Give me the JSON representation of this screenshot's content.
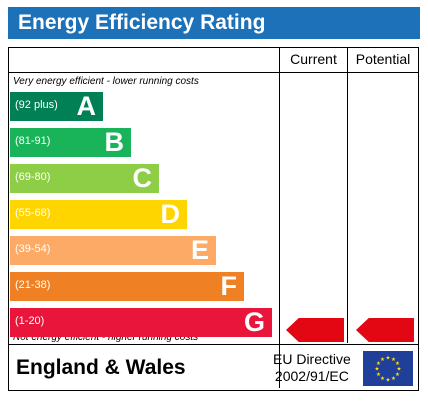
{
  "title": "Energy Efficiency Rating",
  "columns": {
    "current": "Current",
    "potential": "Potential"
  },
  "top_note": "Very energy efficient - lower running costs",
  "bottom_note": "Not energy efficient - higher running costs",
  "footer": {
    "region": "England & Wales",
    "directive_line1": "EU Directive",
    "directive_line2": "2002/91/EC"
  },
  "colors": {
    "title_bar": "#1d71b8",
    "rating_arrow": "#e30613",
    "eu_flag": "#1f3f99",
    "eu_stars": "#ffde00"
  },
  "icons": {
    "flag": "eu-flag-icon"
  },
  "chart_data": {
    "type": "bar",
    "categories": [
      "A",
      "B",
      "C",
      "D",
      "E",
      "F",
      "G"
    ],
    "bands": [
      {
        "letter": "A",
        "range": "(92 plus)",
        "color": "#008054"
      },
      {
        "letter": "B",
        "range": "(81-91)",
        "color": "#19b459"
      },
      {
        "letter": "C",
        "range": "(69-80)",
        "color": "#8dce46"
      },
      {
        "letter": "D",
        "range": "(55-68)",
        "color": "#ffd500"
      },
      {
        "letter": "E",
        "range": "(39-54)",
        "color": "#fcaa65"
      },
      {
        "letter": "F",
        "range": "(21-38)",
        "color": "#ef8023"
      },
      {
        "letter": "G",
        "range": "(1-20)",
        "color": "#e9153b"
      }
    ],
    "current_rating": "G",
    "potential_rating": "G"
  }
}
